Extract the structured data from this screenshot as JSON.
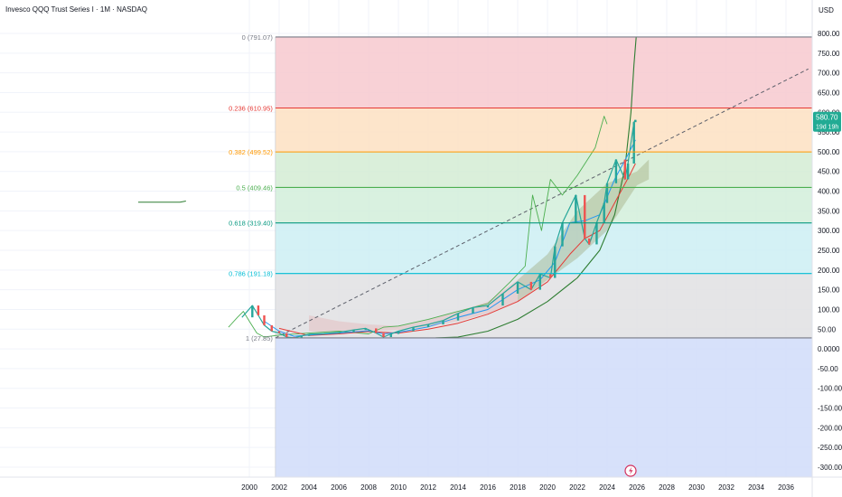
{
  "header": {
    "title": "Invesco QQQ Trust Series I · 1M · NASDAQ"
  },
  "price_scale": {
    "currency": "USD"
  },
  "current_price": {
    "value": "580.70",
    "countdown": "19d 19h",
    "color": "#22ab94"
  },
  "event_marker": {
    "icon": "lightning-icon",
    "color": "#d32f5c"
  },
  "chart_data": {
    "type": "line",
    "ylim": [
      -330,
      830
    ],
    "xlim": [
      1998.5,
      2037.5
    ],
    "y_ticks": [
      "800.00",
      "750.00",
      "700.00",
      "650.00",
      "600.00",
      "550.00",
      "500.00",
      "450.00",
      "400.00",
      "350.00",
      "300.00",
      "250.00",
      "200.00",
      "150.00",
      "100.00",
      "50.00",
      "0.0000",
      "-50.00",
      "-100.00",
      "-150.00",
      "-200.00",
      "-250.00",
      "-300.00"
    ],
    "y_tick_values": [
      800,
      750,
      700,
      650,
      600,
      550,
      500,
      450,
      400,
      350,
      300,
      250,
      200,
      150,
      100,
      50,
      0,
      -50,
      -100,
      -150,
      -200,
      -250,
      -300
    ],
    "x_ticks": [
      "2000",
      "2002",
      "2004",
      "2006",
      "2008",
      "2010",
      "2012",
      "2014",
      "2016",
      "2018",
      "2020",
      "2022",
      "2024",
      "2026",
      "2028",
      "2030",
      "2032",
      "2034",
      "2036"
    ],
    "x_tick_values": [
      2000,
      2002,
      2004,
      2006,
      2008,
      2010,
      2012,
      2014,
      2016,
      2018,
      2020,
      2022,
      2024,
      2026,
      2028,
      2030,
      2032,
      2034,
      2036
    ],
    "fib_levels": [
      {
        "label": "0 (791.07)",
        "value": 791.07,
        "color": "#787b86",
        "fill": "#f7c9cf"
      },
      {
        "label": "0.236 (610.95)",
        "value": 610.95,
        "color": "#e53935",
        "fill": "#fde0c2"
      },
      {
        "label": "0.382 (499.52)",
        "value": 499.52,
        "color": "#ff9800",
        "fill": "#d4ecd4"
      },
      {
        "label": "0.5 (409.46)",
        "value": 409.46,
        "color": "#4caf50",
        "fill": "#d2eedb"
      },
      {
        "label": "0.618 (319.40)",
        "value": 319.4,
        "color": "#089981",
        "fill": "#cdeff3"
      },
      {
        "label": "0.786 (191.18)",
        "value": 191.18,
        "color": "#00bcd4",
        "fill": "#e0e0e3"
      },
      {
        "label": "1 (27.85)",
        "value": 27.85,
        "color": "#787b86",
        "fill": "#d3defa"
      }
    ],
    "fib_bottom_fill": "#d3defa",
    "fib_x_start": 2001.75,
    "trendline": {
      "points": [
        [
          2001.75,
          27.85
        ],
        [
          2037.5,
          710
        ]
      ],
      "color": "#5d606b"
    },
    "series": [
      {
        "kind": "price",
        "points": [
          [
            1999.5,
            80
          ],
          [
            2000.2,
            110
          ],
          [
            2000.6,
            85
          ],
          [
            2001,
            60
          ],
          [
            2001.5,
            45
          ],
          [
            2002,
            40
          ],
          [
            2002.5,
            30
          ],
          [
            2003,
            28
          ],
          [
            2003.5,
            33
          ],
          [
            2004,
            37
          ],
          [
            2005,
            39
          ],
          [
            2006,
            42
          ],
          [
            2007,
            48
          ],
          [
            2007.8,
            52
          ],
          [
            2008.5,
            40
          ],
          [
            2009,
            30
          ],
          [
            2009.5,
            38
          ],
          [
            2010,
            45
          ],
          [
            2011,
            55
          ],
          [
            2012,
            62
          ],
          [
            2013,
            72
          ],
          [
            2014,
            90
          ],
          [
            2015,
            105
          ],
          [
            2016,
            110
          ],
          [
            2017,
            140
          ],
          [
            2018,
            170
          ],
          [
            2018.9,
            150
          ],
          [
            2019.5,
            190
          ],
          [
            2020.2,
            180
          ],
          [
            2020.5,
            260
          ],
          [
            2021,
            320
          ],
          [
            2021.9,
            390
          ],
          [
            2022.5,
            280
          ],
          [
            2022.8,
            265
          ],
          [
            2023.3,
            320
          ],
          [
            2023.8,
            370
          ],
          [
            2024,
            420
          ],
          [
            2024.6,
            480
          ],
          [
            2025.2,
            430
          ],
          [
            2025.4,
            470
          ],
          [
            2025.8,
            575
          ],
          [
            2025.9,
            580.7
          ]
        ]
      },
      {
        "kind": "ma_blue",
        "points": [
          [
            2001,
            70
          ],
          [
            2002,
            45
          ],
          [
            2003,
            32
          ],
          [
            2004,
            35
          ],
          [
            2006,
            40
          ],
          [
            2008,
            46
          ],
          [
            2009,
            38
          ],
          [
            2010,
            42
          ],
          [
            2012,
            56
          ],
          [
            2014,
            80
          ],
          [
            2016,
            100
          ],
          [
            2018,
            150
          ],
          [
            2019.5,
            175
          ],
          [
            2020.5,
            220
          ],
          [
            2021.5,
            320
          ],
          [
            2022.5,
            325
          ],
          [
            2023.5,
            340
          ],
          [
            2024.5,
            430
          ],
          [
            2025.5,
            500
          ],
          [
            2025.9,
            530
          ]
        ]
      },
      {
        "kind": "ma_red",
        "points": [
          [
            2002,
            52
          ],
          [
            2004,
            34
          ],
          [
            2006,
            38
          ],
          [
            2008,
            44
          ],
          [
            2010,
            40
          ],
          [
            2012,
            50
          ],
          [
            2014,
            65
          ],
          [
            2016,
            88
          ],
          [
            2018,
            120
          ],
          [
            2020,
            170
          ],
          [
            2021.5,
            240
          ],
          [
            2022.5,
            280
          ],
          [
            2023.5,
            300
          ],
          [
            2024.5,
            370
          ],
          [
            2025.5,
            440
          ],
          [
            2025.9,
            470
          ]
        ]
      },
      {
        "kind": "lagging_green",
        "points": [
          [
            1998.6,
            55
          ],
          [
            1999.2,
            80
          ],
          [
            1999.6,
            95
          ],
          [
            2000,
            70
          ],
          [
            2000.5,
            40
          ],
          [
            2001,
            30
          ],
          [
            2002,
            35
          ],
          [
            2004,
            40
          ],
          [
            2006,
            45
          ],
          [
            2008,
            38
          ],
          [
            2009,
            55
          ],
          [
            2010,
            58
          ],
          [
            2012,
            75
          ],
          [
            2014,
            95
          ],
          [
            2016,
            115
          ],
          [
            2017.5,
            170
          ],
          [
            2018.5,
            210
          ],
          [
            2019,
            390
          ],
          [
            2019.6,
            300
          ],
          [
            2020.2,
            430
          ],
          [
            2021,
            390
          ],
          [
            2022,
            440
          ],
          [
            2023.2,
            510
          ],
          [
            2023.8,
            590
          ],
          [
            2024,
            570
          ]
        ]
      },
      {
        "kind": "curve_green",
        "points": [
          [
            2012.5,
            27.85
          ],
          [
            2014,
            30
          ],
          [
            2016,
            45
          ],
          [
            2018,
            75
          ],
          [
            2020,
            120
          ],
          [
            2022,
            180
          ],
          [
            2023.5,
            250
          ],
          [
            2024.5,
            340
          ],
          [
            2025.2,
            460
          ],
          [
            2025.6,
            600
          ],
          [
            2025.8,
            720
          ],
          [
            2025.95,
            791
          ]
        ]
      },
      {
        "kind": "cloud",
        "upper": [
          [
            2004,
            85
          ],
          [
            2006,
            70
          ],
          [
            2008,
            62
          ],
          [
            2010,
            58
          ],
          [
            2012,
            75
          ],
          [
            2014,
            95
          ],
          [
            2016,
            120
          ],
          [
            2018,
            175
          ],
          [
            2020,
            240
          ],
          [
            2022,
            350
          ],
          [
            2024,
            420
          ],
          [
            2026,
            450
          ],
          [
            2026.8,
            480
          ]
        ],
        "lower": [
          [
            2026.8,
            430
          ],
          [
            2026,
            415
          ],
          [
            2024,
            300
          ],
          [
            2022,
            230
          ],
          [
            2020,
            175
          ],
          [
            2018,
            120
          ],
          [
            2016,
            90
          ],
          [
            2014,
            70
          ],
          [
            2012,
            55
          ],
          [
            2010,
            48
          ],
          [
            2008,
            45
          ],
          [
            2006,
            42
          ],
          [
            2004,
            45
          ]
        ]
      }
    ],
    "floating_segment": {
      "points": [
        [
          1990.7,
          372
        ],
        [
          1993.5,
          372
        ],
        [
          1993.9,
          375
        ]
      ]
    }
  }
}
